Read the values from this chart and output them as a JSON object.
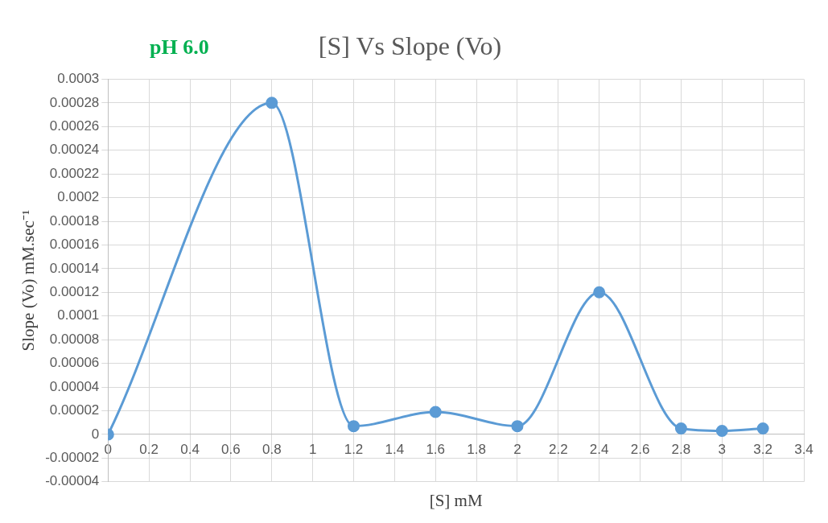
{
  "chart_data": {
    "type": "line",
    "title": "[S] Vs Slope (Vo)",
    "xlabel": "[S] mM",
    "ylabel": "Slope (Vo) mM.sec⁻¹",
    "annotations": [
      "pH 6.0"
    ],
    "x": [
      0,
      0.8,
      1.2,
      1.6,
      2,
      2.4,
      2.8,
      3,
      3.2
    ],
    "series": [
      {
        "color": "#5b9bd5",
        "values": [
          0,
          0.00028,
          7e-06,
          1.9e-05,
          7e-06,
          0.00012,
          5e-06,
          3e-06,
          5e-06
        ]
      }
    ],
    "xlim": [
      0,
      3.4
    ],
    "xticks": [
      0,
      0.2,
      0.4,
      0.6,
      0.8,
      1,
      1.2,
      1.4,
      1.6,
      1.8,
      2,
      2.2,
      2.4,
      2.6,
      2.8,
      3,
      3.2,
      3.4
    ],
    "ylim": [
      -4e-05,
      0.0003
    ],
    "yticks": [
      {
        "value": -4e-05,
        "label": "-0.00004"
      },
      {
        "value": -2e-05,
        "label": "-0.00002"
      },
      0,
      {
        "value": 2e-05,
        "label": "0.00002"
      },
      {
        "value": 4e-05,
        "label": "0.00004"
      },
      {
        "value": 6e-05,
        "label": "0.00006"
      },
      {
        "value": 8e-05,
        "label": "0.00008"
      },
      0.0001,
      0.00012,
      0.00014,
      0.00016,
      0.00018,
      0.0002,
      0.00022,
      0.00024,
      0.00026,
      0.00028,
      0.0003
    ],
    "grid": true,
    "legend": false,
    "marker": "circle",
    "line_style": "solid"
  }
}
